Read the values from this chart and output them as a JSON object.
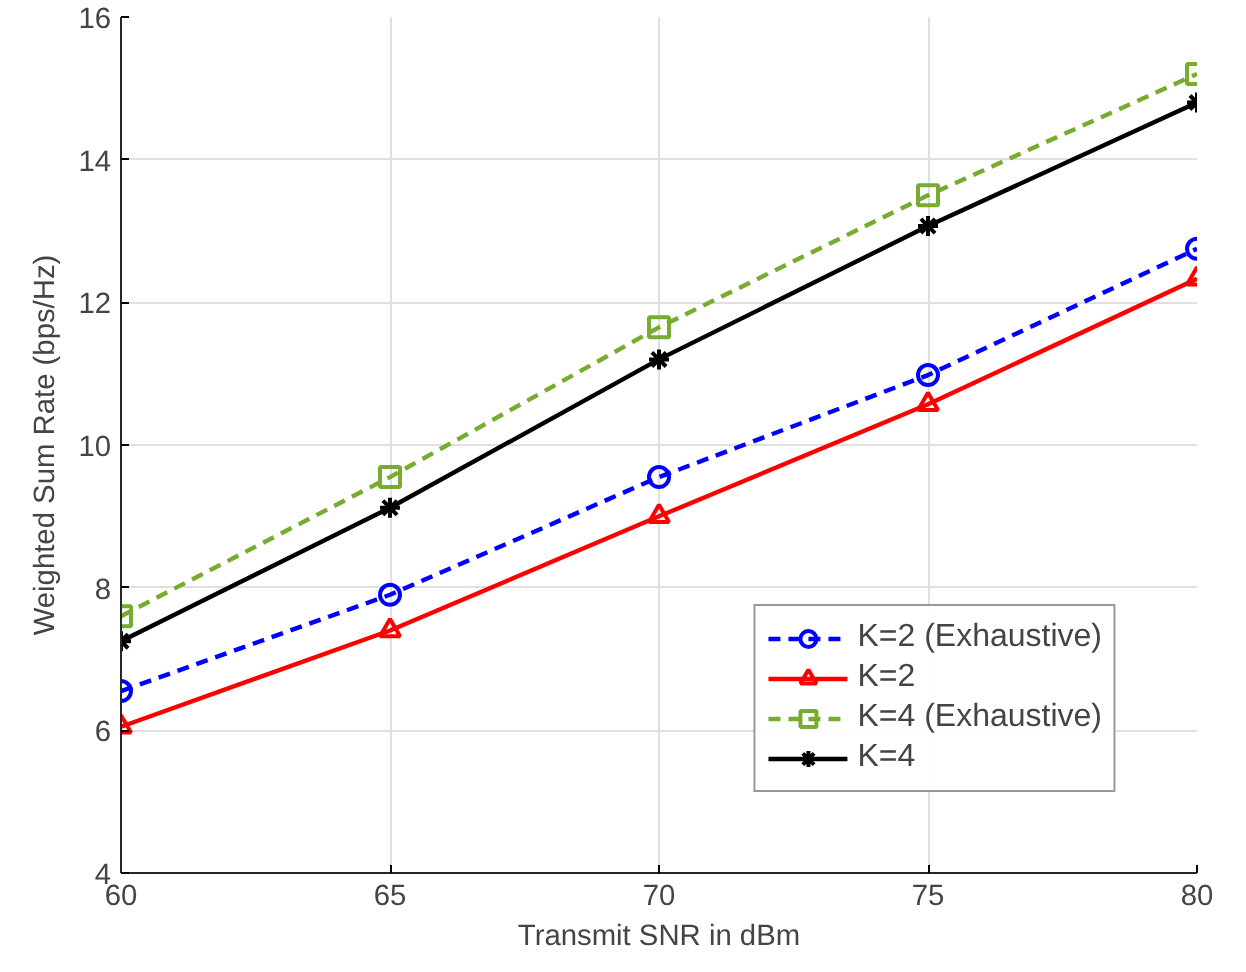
{
  "chart_data": {
    "type": "line",
    "xlabel": "Transmit SNR in dBm",
    "ylabel": "Weighted Sum Rate (bps/Hz)",
    "x": [
      60,
      65,
      70,
      75,
      80
    ],
    "xlim": [
      60,
      80
    ],
    "xticks": [
      60,
      65,
      70,
      75,
      80
    ],
    "ylim": [
      4,
      16
    ],
    "yticks": [
      4,
      6,
      8,
      10,
      12,
      14,
      16
    ],
    "grid": true,
    "legend": "bottom right",
    "series": [
      {
        "name": "K=2 (Exhaustive)",
        "color": "#0000ff",
        "marker": "circle",
        "line_style": "dashed",
        "values": [
          6.55,
          7.9,
          9.55,
          10.98,
          12.75
        ]
      },
      {
        "name": "K=2",
        "color": "#ff0000",
        "marker": "triangle",
        "line_style": "solid",
        "values": [
          6.05,
          7.4,
          9.0,
          10.57,
          12.33
        ]
      },
      {
        "name": "K=4 (Exhaustive)",
        "color": "#77ac30",
        "marker": "square",
        "line_style": "dashed",
        "values": [
          7.6,
          9.55,
          11.65,
          13.5,
          15.2
        ]
      },
      {
        "name": "K=4",
        "color": "#000000",
        "marker": "cross",
        "line_style": "solid",
        "values": [
          7.25,
          9.12,
          11.2,
          13.07,
          14.8
        ]
      }
    ]
  }
}
